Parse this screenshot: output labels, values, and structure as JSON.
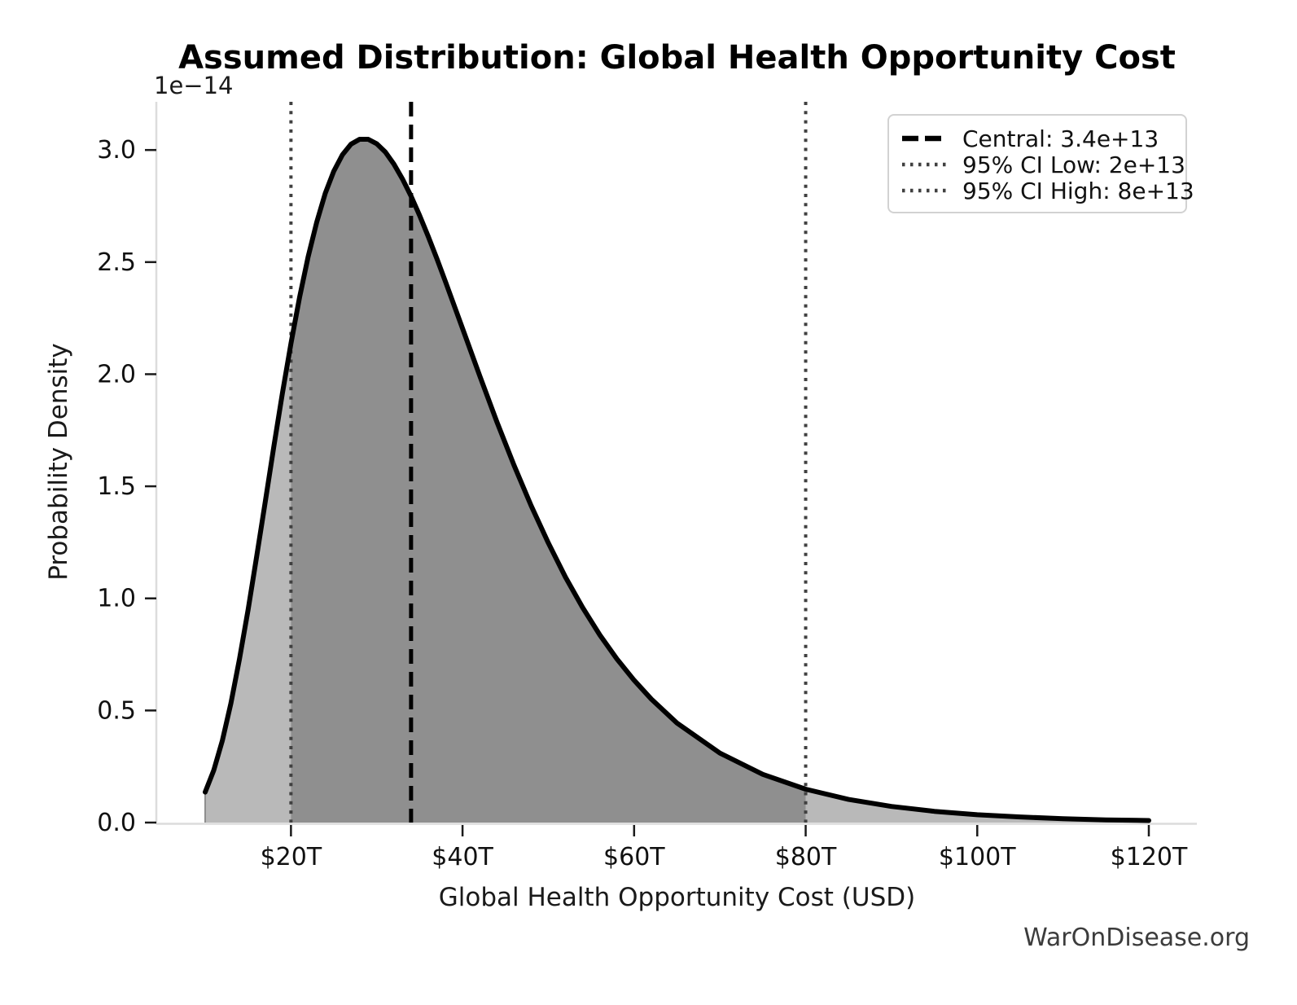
{
  "figure": {
    "title": "Assumed Distribution: Global Health Opportunity Cost",
    "watermark": "WarOnDisease.org"
  },
  "axes": {
    "xlabel": "Global Health Opportunity Cost (USD)",
    "ylabel": "Probability Density",
    "y_offset_label": "1e−14"
  },
  "legend": {
    "items": [
      {
        "label": "Central: 3.4e+13",
        "style": "dashed",
        "color": "#000000"
      },
      {
        "label": "95% CI Low: 2e+13",
        "style": "dotted",
        "color": "#404040"
      },
      {
        "label": "95% CI High: 8e+13",
        "style": "dotted",
        "color": "#404040"
      }
    ]
  },
  "chart_data": {
    "type": "area",
    "title": "Assumed Distribution: Global Health Opportunity Cost",
    "xlabel": "Global Health Opportunity Cost (USD)",
    "ylabel": "Probability Density",
    "y_scale_factor_label": "1e−14",
    "x_units": "trillions of USD",
    "y_units": "probability density × 1e-14",
    "xlim": [
      4.4,
      125.6
    ],
    "ylim": [
      0,
      3.215
    ],
    "grid": false,
    "legend_position": "upper right",
    "x_ticks": [
      {
        "value": 20,
        "label": "$20T"
      },
      {
        "value": 40,
        "label": "$40T"
      },
      {
        "value": 60,
        "label": "$60T"
      },
      {
        "value": 80,
        "label": "$80T"
      },
      {
        "value": 100,
        "label": "$100T"
      },
      {
        "value": 120,
        "label": "$120T"
      }
    ],
    "y_ticks": [
      {
        "value": 0.0,
        "label": "0.0"
      },
      {
        "value": 0.5,
        "label": "0.5"
      },
      {
        "value": 1.0,
        "label": "1.0"
      },
      {
        "value": 1.5,
        "label": "1.5"
      },
      {
        "value": 2.0,
        "label": "2.0"
      },
      {
        "value": 2.5,
        "label": "2.5"
      },
      {
        "value": 3.0,
        "label": "3.0"
      }
    ],
    "series": [
      {
        "name": "assumed-distribution-pdf",
        "points": [
          [
            10,
            0.136
          ],
          [
            11,
            0.233
          ],
          [
            12,
            0.366
          ],
          [
            13,
            0.532
          ],
          [
            14,
            0.729
          ],
          [
            15,
            0.949
          ],
          [
            16,
            1.186
          ],
          [
            17,
            1.431
          ],
          [
            18,
            1.677
          ],
          [
            19,
            1.914
          ],
          [
            20,
            2.138
          ],
          [
            21,
            2.342
          ],
          [
            22,
            2.523
          ],
          [
            23,
            2.678
          ],
          [
            24,
            2.807
          ],
          [
            25,
            2.906
          ],
          [
            26,
            2.979
          ],
          [
            27,
            3.026
          ],
          [
            28,
            3.048
          ],
          [
            29,
            3.048
          ],
          [
            30,
            3.028
          ],
          [
            31,
            2.991
          ],
          [
            32,
            2.937
          ],
          [
            33,
            2.871
          ],
          [
            34,
            2.794
          ],
          [
            35,
            2.708
          ],
          [
            36,
            2.615
          ],
          [
            37,
            2.516
          ],
          [
            38,
            2.414
          ],
          [
            40,
            2.204
          ],
          [
            42,
            1.993
          ],
          [
            44,
            1.788
          ],
          [
            46,
            1.594
          ],
          [
            48,
            1.413
          ],
          [
            50,
            1.247
          ],
          [
            52,
            1.095
          ],
          [
            54,
            0.959
          ],
          [
            56,
            0.837
          ],
          [
            58,
            0.73
          ],
          [
            60,
            0.635
          ],
          [
            62,
            0.551
          ],
          [
            65,
            0.444
          ],
          [
            70,
            0.31
          ],
          [
            75,
            0.215
          ],
          [
            80,
            0.149
          ],
          [
            85,
            0.103
          ],
          [
            90,
            0.072
          ],
          [
            95,
            0.05
          ],
          [
            100,
            0.035
          ],
          [
            105,
            0.025
          ],
          [
            110,
            0.017
          ],
          [
            115,
            0.012
          ],
          [
            120,
            0.009
          ]
        ]
      }
    ],
    "vlines": [
      {
        "x": 34,
        "value_label": "3.4e+13",
        "name": "central",
        "style": "dashed"
      },
      {
        "x": 20,
        "value_label": "2e+13",
        "name": "ci-low",
        "style": "dotted"
      },
      {
        "x": 80,
        "value_label": "8e+13",
        "name": "ci-high",
        "style": "dotted"
      }
    ],
    "ci_fill_range": [
      20,
      80
    ],
    "colors": {
      "curve": "#000000",
      "fill_inner": "#8f8f8f",
      "fill_outer": "#b9b9b9",
      "dashed_line": "#000000",
      "dotted_line": "#404040",
      "spine": "#dcdcdc",
      "tick": "#1a1a1a",
      "text": "#111111",
      "watermark": "#3c3c3c"
    }
  }
}
